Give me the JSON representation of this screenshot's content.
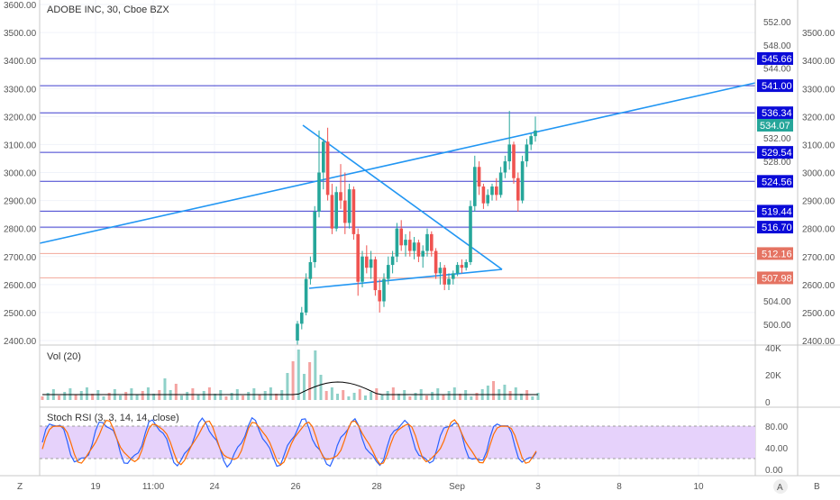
{
  "header": {
    "title": "ADOBE INC, 30, Cboe BZX"
  },
  "colors": {
    "up": "#26a69a",
    "down": "#ef5350",
    "trendline": "#2196f3",
    "level_line": "#3d3dcf",
    "level_tag": "#0b0bd8",
    "red_line": "#f2a79a",
    "red_tag": "#e57362",
    "price_tag": "#26a69a",
    "rsi_bg": "#e6d2fb",
    "k_line": "#2962ff",
    "d_line": "#ff6d00",
    "vol_ma": "#000000"
  },
  "left_axis": {
    "ticks": [
      "3600.00",
      "3500.00",
      "3400.00",
      "3300.00",
      "3200.00",
      "3100.00",
      "3000.00",
      "2900.00",
      "2800.00",
      "2700.00",
      "2600.00",
      "2500.00",
      "2400.00"
    ]
  },
  "right_axis_b": {
    "ticks": [
      "3500.00",
      "3400.00",
      "3300.00",
      "3200.00",
      "3100.00",
      "3000.00",
      "2900.00",
      "2800.00",
      "2700.00",
      "2600.00",
      "2500.00",
      "2400.00"
    ]
  },
  "right_axis_a": {
    "ticks": [
      "552.00",
      "548.00",
      "544.00",
      "532.00",
      "528.00",
      "504.00",
      "500.00"
    ]
  },
  "levels": [
    {
      "price": "545.66",
      "style": "blue"
    },
    {
      "price": "541.00",
      "style": "blue"
    },
    {
      "price": "536.34",
      "style": "blue"
    },
    {
      "price": "529.54",
      "style": "blue"
    },
    {
      "price": "524.56",
      "style": "blue"
    },
    {
      "price": "519.44",
      "style": "blue"
    },
    {
      "price": "516.70",
      "style": "blue"
    },
    {
      "price": "512.16",
      "style": "red"
    },
    {
      "price": "507.98",
      "style": "red"
    }
  ],
  "last_price": "534.07",
  "volume_pane": {
    "label": "Vol (20)",
    "ticks": [
      "40K",
      "20K",
      "0"
    ]
  },
  "rsi_pane": {
    "label": "Stoch RSI (3, 3, 14, 14, close)",
    "ticks": [
      "80.00",
      "40.00",
      "0.00"
    ]
  },
  "x_axis": {
    "labels": [
      "19",
      "11:00",
      "24",
      "26",
      "28",
      "Sep",
      "3",
      "8",
      "10"
    ]
  },
  "corner_buttons": {
    "left": "Z",
    "mid": "A",
    "right": "B"
  },
  "chart_data": {
    "type": "candlestick",
    "title": "ADOBE INC, 30, Cboe BZX",
    "x": [
      "19",
      "11:00",
      "24",
      "26",
      "28",
      "Sep",
      "3",
      "8",
      "10"
    ],
    "price_range_left_axis": [
      2400,
      3600
    ],
    "price_range_right_axis": [
      500,
      552
    ],
    "ohlc_in_left_axis_units": [
      [
        2400,
        2470,
        2385,
        2460
      ],
      [
        2460,
        2520,
        2440,
        2500
      ],
      [
        2500,
        2640,
        2490,
        2620
      ],
      [
        2620,
        2700,
        2600,
        2680
      ],
      [
        2680,
        2880,
        2660,
        2860
      ],
      [
        2860,
        3150,
        2840,
        3000
      ],
      [
        3000,
        3120,
        2940,
        3110
      ],
      [
        3110,
        3160,
        2900,
        2920
      ],
      [
        2920,
        2960,
        2780,
        2800
      ],
      [
        2800,
        2950,
        2790,
        2930
      ],
      [
        2930,
        3030,
        2870,
        2900
      ],
      [
        2900,
        3000,
        2780,
        2820
      ],
      [
        2820,
        2960,
        2800,
        2940
      ],
      [
        2940,
        2950,
        2760,
        2780
      ],
      [
        2780,
        2800,
        2560,
        2610
      ],
      [
        2610,
        2720,
        2590,
        2700
      ],
      [
        2700,
        2740,
        2640,
        2660
      ],
      [
        2660,
        2720,
        2620,
        2690
      ],
      [
        2690,
        2700,
        2560,
        2580
      ],
      [
        2580,
        2620,
        2500,
        2540
      ],
      [
        2540,
        2640,
        2520,
        2620
      ],
      [
        2620,
        2700,
        2600,
        2670
      ],
      [
        2670,
        2720,
        2640,
        2700
      ],
      [
        2700,
        2820,
        2680,
        2800
      ],
      [
        2800,
        2830,
        2720,
        2740
      ],
      [
        2740,
        2780,
        2700,
        2760
      ],
      [
        2760,
        2790,
        2700,
        2720
      ],
      [
        2720,
        2770,
        2690,
        2750
      ],
      [
        2750,
        2760,
        2680,
        2700
      ],
      [
        2700,
        2740,
        2660,
        2720
      ],
      [
        2720,
        2800,
        2700,
        2780
      ],
      [
        2780,
        2790,
        2700,
        2720
      ],
      [
        2720,
        2730,
        2620,
        2640
      ],
      [
        2640,
        2680,
        2600,
        2660
      ],
      [
        2660,
        2670,
        2580,
        2600
      ],
      [
        2600,
        2640,
        2580,
        2620
      ],
      [
        2620,
        2650,
        2600,
        2640
      ],
      [
        2640,
        2680,
        2630,
        2670
      ],
      [
        2670,
        2690,
        2640,
        2660
      ],
      [
        2660,
        2690,
        2650,
        2680
      ],
      [
        2680,
        2900,
        2670,
        2880
      ],
      [
        2880,
        3060,
        2860,
        3020
      ],
      [
        3020,
        3040,
        2920,
        2950
      ],
      [
        2950,
        2960,
        2870,
        2890
      ],
      [
        2890,
        2940,
        2880,
        2920
      ],
      [
        2920,
        2960,
        2900,
        2950
      ],
      [
        2950,
        2980,
        2900,
        2920
      ],
      [
        2920,
        3020,
        2910,
        3000
      ],
      [
        3000,
        3060,
        2980,
        3040
      ],
      [
        3040,
        3220,
        3010,
        3100
      ],
      [
        3100,
        3110,
        2960,
        2980
      ],
      [
        2980,
        3000,
        2860,
        2900
      ],
      [
        2900,
        3060,
        2890,
        3040
      ],
      [
        3040,
        3120,
        3020,
        3100
      ],
      [
        3100,
        3140,
        3080,
        3130
      ],
      [
        3130,
        3200,
        3110,
        3150
      ]
    ],
    "series": [
      {
        "name": "Vol (20)",
        "type": "bar"
      },
      {
        "name": "Stoch RSI (3, 3, 14, 14, close)",
        "type": "line",
        "ylim": [
          0,
          100
        ]
      }
    ]
  }
}
